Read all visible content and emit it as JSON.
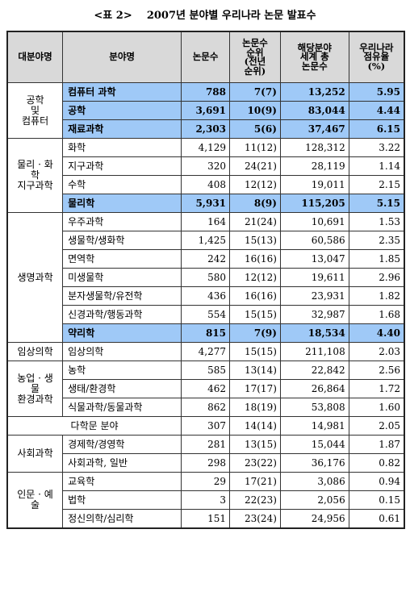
{
  "title": "<표 2>    2007년 분야별 우리나라 논문 발표수",
  "header": [
    "대분야명",
    "분야명",
    "논문수",
    "논문수\n순위\n(전년\n순위)",
    "해당분야\n세계 총\n논문수",
    "우리나라\n점유율\n(%)"
  ],
  "groups": [
    {
      "name": "공학\n및\n컴퓨터",
      "rows": [
        {
          "field": "컴퓨터 과학",
          "count": "788",
          "rank": "7(7)",
          "world": "13,252",
          "share": "5.95",
          "highlight": true
        },
        {
          "field": "공학",
          "count": "3,691",
          "rank": "10(9)",
          "world": "83,044",
          "share": "4.44",
          "highlight": true
        },
        {
          "field": "재료과학",
          "count": "2,303",
          "rank": "5(6)",
          "world": "37,467",
          "share": "6.15",
          "highlight": true
        }
      ]
    },
    {
      "name": "물리 · 화\n학\n지구과학",
      "rows": [
        {
          "field": "화학",
          "count": "4,129",
          "rank": "11(12)",
          "world": "128,312",
          "share": "3.22"
        },
        {
          "field": "지구과학",
          "count": "320",
          "rank": "24(21)",
          "world": "28,119",
          "share": "1.14"
        },
        {
          "field": "수학",
          "count": "408",
          "rank": "12(12)",
          "world": "19,011",
          "share": "2.15"
        },
        {
          "field": "물리학",
          "count": "5,931",
          "rank": "8(9)",
          "world": "115,205",
          "share": "5.15",
          "highlight": true
        }
      ]
    },
    {
      "name": "생명과학",
      "rows": [
        {
          "field": "우주과학",
          "count": "164",
          "rank": "21(24)",
          "world": "10,691",
          "share": "1.53"
        },
        {
          "field": "생물학/생화학",
          "count": "1,425",
          "rank": "15(13)",
          "world": "60,586",
          "share": "2.35"
        },
        {
          "field": "면역학",
          "count": "242",
          "rank": "16(16)",
          "world": "13,047",
          "share": "1.85"
        },
        {
          "field": "미생물학",
          "count": "580",
          "rank": "12(12)",
          "world": "19,611",
          "share": "2.96"
        },
        {
          "field": "분자생물학/유전학",
          "count": "436",
          "rank": "16(16)",
          "world": "23,931",
          "share": "1.82"
        },
        {
          "field": "신경과학/행동과학",
          "count": "554",
          "rank": "15(15)",
          "world": "32,987",
          "share": "1.68"
        },
        {
          "field": "약리학",
          "count": "815",
          "rank": "7(9)",
          "world": "18,534",
          "share": "4.40",
          "highlight": true
        }
      ]
    },
    {
      "name": "임상의학",
      "rows": [
        {
          "field": "임상의학",
          "count": "4,277",
          "rank": "15(15)",
          "world": "211,108",
          "share": "2.03"
        }
      ]
    },
    {
      "name": "농업 · 생\n물\n환경과학",
      "rows": [
        {
          "field": "농학",
          "count": "585",
          "rank": "13(14)",
          "world": "22,842",
          "share": "2.56"
        },
        {
          "field": "생태/환경학",
          "count": "462",
          "rank": "17(17)",
          "world": "26,864",
          "share": "1.72"
        },
        {
          "field": "식물과학/동물과학",
          "count": "862",
          "rank": "18(19)",
          "world": "53,808",
          "share": "1.60"
        }
      ]
    },
    {
      "name": "다학문 분야",
      "span": true,
      "rows": [
        {
          "count": "307",
          "rank": "14(14)",
          "world": "14,981",
          "share": "2.05"
        }
      ]
    },
    {
      "name": "사회과학",
      "rows": [
        {
          "field": "경제학/경영학",
          "count": "281",
          "rank": "13(15)",
          "world": "15,044",
          "share": "1.87"
        },
        {
          "field": "사회과학, 일반",
          "count": "298",
          "rank": "23(22)",
          "world": "36,176",
          "share": "0.82"
        }
      ]
    },
    {
      "name": "인문 · 예\n술",
      "rows": [
        {
          "field": "교육학",
          "count": "29",
          "rank": "17(21)",
          "world": "3,086",
          "share": "0.94"
        },
        {
          "field": "법학",
          "count": "3",
          "rank": "22(23)",
          "world": "2,056",
          "share": "0.15"
        },
        {
          "field": "정신의학/심리학",
          "count": "151",
          "rank": "23(24)",
          "world": "24,956",
          "share": "0.61"
        }
      ]
    }
  ]
}
